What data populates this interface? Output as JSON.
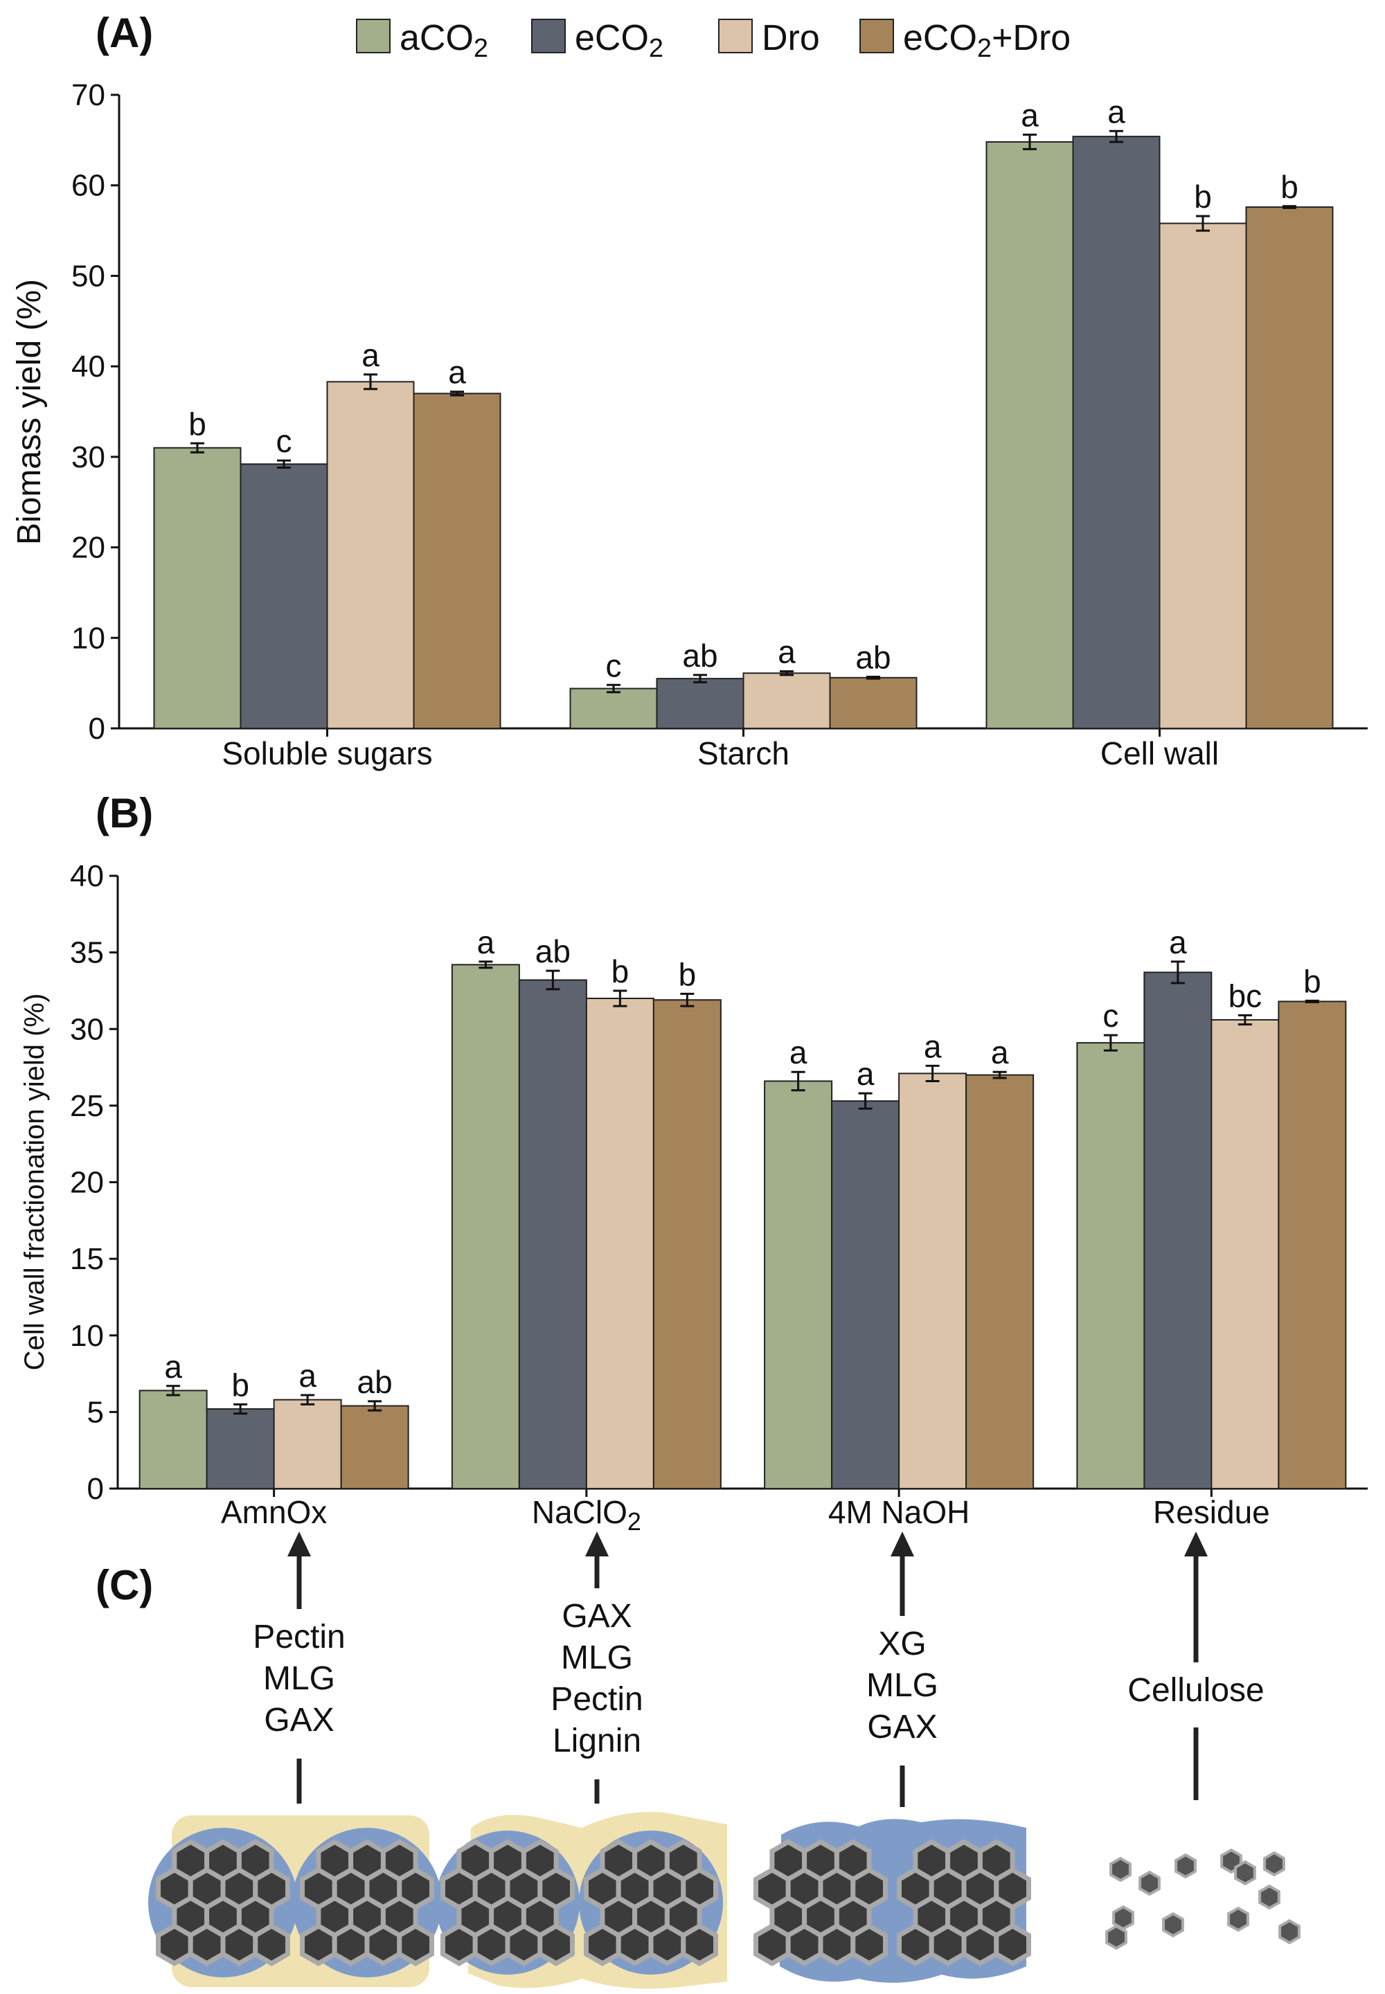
{
  "colors": {
    "aCO2": "#a3ae8b",
    "eCO2": "#5e6370",
    "Dro": "#dcc4aa",
    "eCO2+Dro": "#a6845a",
    "cell_wall_blue": "#7f9cc9",
    "cell_wall_yellow": "#f0e2b0",
    "fibril_dark": "#3b3b3b",
    "fibril_edge": "#a9a9a9"
  },
  "legend": {
    "items": [
      {
        "key": "aCO2",
        "base": "aCO",
        "sub": "2",
        "suffix": ""
      },
      {
        "key": "eCO2",
        "base": "eCO",
        "sub": "2",
        "suffix": ""
      },
      {
        "key": "Dro",
        "base": "Dro",
        "sub": "",
        "suffix": ""
      },
      {
        "key": "eCO2+Dro",
        "base": "eCO",
        "sub": "2",
        "suffix": "+Dro"
      }
    ]
  },
  "chart_data": [
    {
      "panel_label": "(A)",
      "type": "bar",
      "title": "",
      "xlabel": "",
      "ylabel": "Biomass yield (%)",
      "ylim": [
        0,
        70
      ],
      "yticks": [
        0,
        10,
        20,
        30,
        40,
        50,
        60,
        70
      ],
      "categories": [
        "Soluble sugars",
        "Starch",
        "Cell wall"
      ],
      "series": [
        {
          "name": "aCO2",
          "values": [
            31.0,
            4.4,
            64.8
          ],
          "errors": [
            0.5,
            0.4,
            0.8
          ],
          "letters": [
            "b",
            "c",
            "a"
          ]
        },
        {
          "name": "eCO2",
          "values": [
            29.2,
            5.5,
            65.4
          ],
          "errors": [
            0.4,
            0.4,
            0.6
          ],
          "letters": [
            "c",
            "ab",
            "a"
          ]
        },
        {
          "name": "Dro",
          "values": [
            38.3,
            6.1,
            55.8
          ],
          "errors": [
            0.8,
            0.2,
            0.8
          ],
          "letters": [
            "a",
            "a",
            "b"
          ]
        },
        {
          "name": "eCO2+Dro",
          "values": [
            37.0,
            5.6,
            57.6
          ],
          "errors": [
            0.2,
            0.1,
            0.1
          ],
          "letters": [
            "a",
            "ab",
            "b"
          ]
        }
      ]
    },
    {
      "panel_label": "(B)",
      "type": "bar",
      "title": "",
      "xlabel": "",
      "ylabel": "Cell wall fractionation yield (%)",
      "ylim": [
        0,
        40
      ],
      "yticks": [
        0,
        5,
        10,
        15,
        20,
        25,
        30,
        35,
        40
      ],
      "categories": [
        {
          "base": "AmnOx",
          "sub": ""
        },
        {
          "base": "NaClO",
          "sub": "2"
        },
        {
          "base": "4M NaOH",
          "sub": ""
        },
        {
          "base": "Residue",
          "sub": ""
        }
      ],
      "series": [
        {
          "name": "aCO2",
          "values": [
            6.4,
            34.2,
            26.6,
            29.1
          ],
          "errors": [
            0.3,
            0.2,
            0.6,
            0.5
          ],
          "letters": [
            "a",
            "a",
            "a",
            "c"
          ]
        },
        {
          "name": "eCO2",
          "values": [
            5.2,
            33.2,
            25.3,
            33.7
          ],
          "errors": [
            0.3,
            0.6,
            0.5,
            0.7
          ],
          "letters": [
            "b",
            "ab",
            "a",
            "a"
          ]
        },
        {
          "name": "Dro",
          "values": [
            5.8,
            32.0,
            27.1,
            30.6
          ],
          "errors": [
            0.3,
            0.5,
            0.5,
            0.3
          ],
          "letters": [
            "a",
            "b",
            "a",
            "bc"
          ]
        },
        {
          "name": "eCO2+Dro",
          "values": [
            5.4,
            31.9,
            27.0,
            31.8
          ],
          "errors": [
            0.3,
            0.4,
            0.2,
            0.05
          ],
          "letters": [
            "ab",
            "b",
            "a",
            "b"
          ]
        }
      ]
    }
  ],
  "panel_c": {
    "label": "(C)",
    "components": [
      {
        "fraction": "AmnOx",
        "lines": [
          "Pectin",
          "MLG",
          "GAX"
        ]
      },
      {
        "fraction": "NaClO2",
        "lines": [
          "GAX",
          "MLG",
          "Pectin",
          "Lignin"
        ]
      },
      {
        "fraction": "4M NaOH",
        "lines": [
          "XG",
          "MLG",
          "GAX"
        ]
      },
      {
        "fraction": "Residue",
        "lines": [
          "Cellulose"
        ]
      }
    ]
  }
}
